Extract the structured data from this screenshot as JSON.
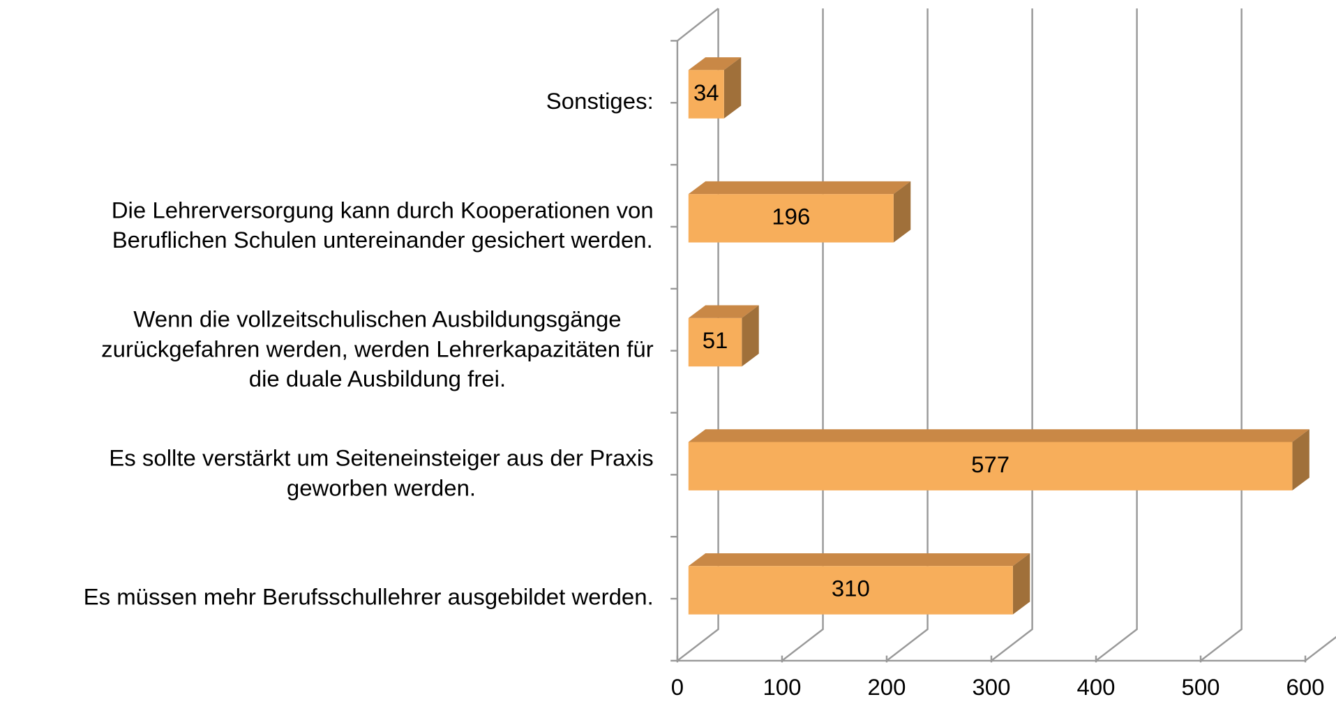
{
  "chart_data": {
    "type": "bar3d_horizontal",
    "categories": [
      [
        "Sonstiges:"
      ],
      [
        "Die Lehrerversorgung kann durch Kooperationen von",
        "Beruflichen Schulen untereinander gesichert werden."
      ],
      [
        "Wenn die vollzeitschulischen Ausbildungsgänge",
        "zurückgefahren werden, werden Lehrerkapazitäten für",
        "die duale Ausbildung frei."
      ],
      [
        "Es sollte verstärkt um Seiteneinsteiger aus der Praxis",
        "geworben werden."
      ],
      [
        "Es müssen mehr Berufsschullehrer ausgebildet werden."
      ]
    ],
    "values": [
      34,
      196,
      51,
      577,
      310
    ],
    "color": "#F7AE5B",
    "xlim": [
      0,
      600
    ],
    "xticks": [
      0,
      100,
      200,
      300,
      400,
      500,
      600
    ],
    "grid": true
  }
}
